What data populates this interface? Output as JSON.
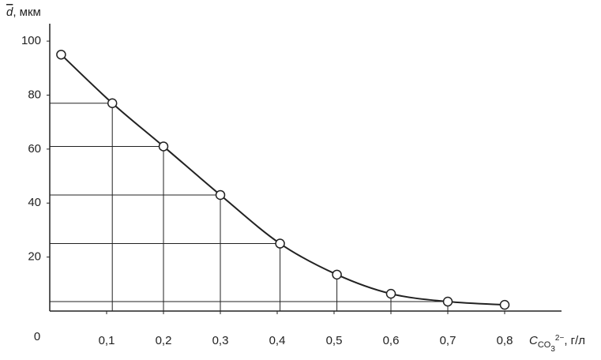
{
  "chart_data": {
    "type": "line",
    "y_label": {
      "symbol": "d",
      "unit": ", мкм"
    },
    "x_label": {
      "symbol": "C",
      "sub": "CO",
      "sub_index": "3",
      "charge": "2−",
      "unit": ", г/л"
    },
    "x": [
      0.02,
      0.11,
      0.2,
      0.3,
      0.405,
      0.505,
      0.6,
      0.7,
      0.8
    ],
    "values": [
      95,
      77,
      61,
      43,
      25,
      13.5,
      6.4,
      3.5,
      2.3
    ],
    "color": "#222222",
    "marker_fill": "#ffffff",
    "xlim": [
      0,
      0.9
    ],
    "ylim": [
      0,
      105
    ],
    "xticks": [
      0,
      {
        "value": 0.1,
        "label": "0,1"
      },
      {
        "value": 0.2,
        "label": "0,2"
      },
      {
        "value": 0.3,
        "label": "0,3"
      },
      {
        "value": 0.4,
        "label": "0,4"
      },
      {
        "value": 0.5,
        "label": "0,5"
      },
      {
        "value": 0.6,
        "label": "0,6"
      },
      {
        "value": 0.7,
        "label": "0,7"
      },
      {
        "value": 0.8,
        "label": "0,8"
      }
    ],
    "yticks": [
      20,
      40,
      60,
      80,
      100
    ]
  }
}
